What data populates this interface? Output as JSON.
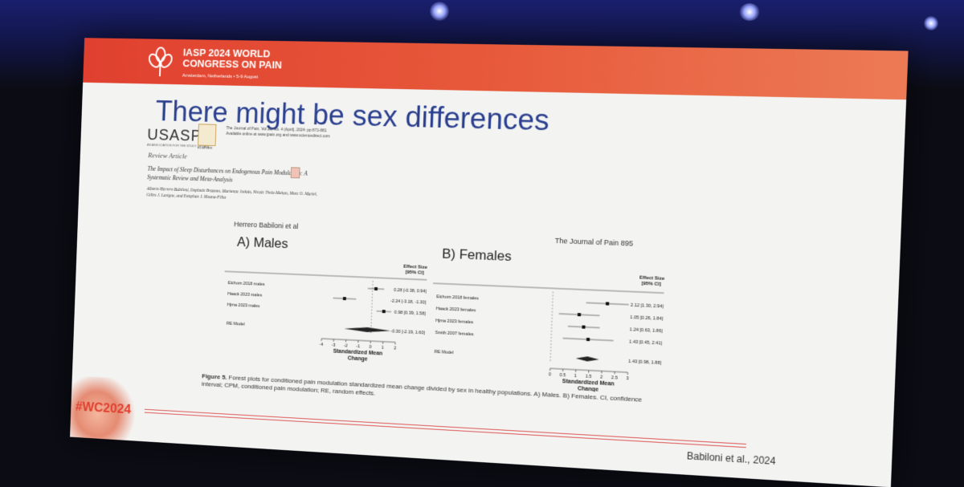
{
  "slide": {
    "congress_title_line1": "IASP 2024 WORLD",
    "congress_title_line2": "CONGRESS ON PAIN",
    "congress_subtitle": "Amsterdam, Netherlands • 5-9 August",
    "title": "There might be sex differences",
    "hashtag": "#WC2024",
    "citation": "Babiloni et al., 2024"
  },
  "paper": {
    "society": "USASP",
    "society_tagline": "AN ASSOCIATION FOR THE STUDY OF PAIN",
    "publisher": "ELSEVIER",
    "header_text": "The Journal of Pain, Vol 25, No. 4 (April), 2024: pp 871-881",
    "header_text2": "Available online at www.jpain.org and www.sciencedirect.com",
    "article_type": "Review Article",
    "title": "The Impact of Sleep Disturbances on Endogenous Pain Modulation: A Systematic Review and Meta-Analysis",
    "authors": "Alberto Herrero Babiloni, Daphnée Brazeau, Marianne Jodoin, Nicole Theis-Mahon, Marc O. Martel, Gilles J. Lavigne, and Estephan J. Moana-Filho"
  },
  "figure": {
    "running_head": "Herrero Babiloni et al",
    "journal_header": "The Journal of Pain   895",
    "panel_a_label": "A)  Males",
    "panel_b_label": "B)  Females",
    "effect_header_1": "Effect Size",
    "effect_header_2": "[95% CI]",
    "axis_label_1": "Standardized Mean",
    "axis_label_2": "Change",
    "caption_bold": "Figure 5.",
    "caption_text": " Forest plots for conditioned pain modulation standardized mean change divided by sex in healthy populations. A) Males. B) Females. CI, confidence interval; CPM, conditioned pain modulation; RE, random effects."
  },
  "chart_data": [
    {
      "type": "forest",
      "title": "A) Males",
      "xlabel": "Standardized Mean Change",
      "xlim": [
        -4,
        2
      ],
      "xticks": [
        "-4",
        "-3",
        "-2",
        "-1",
        "0",
        "1",
        "2"
      ],
      "studies": [
        {
          "label": "Eichorn 2018 males",
          "est": 0.28,
          "lo": -0.38,
          "hi": 0.94,
          "text": "0.28 [-0.38, 0.94]"
        },
        {
          "label": "Haack 2023 males",
          "est": -2.24,
          "lo": -3.18,
          "hi": -1.3,
          "text": "-2.24 [-3.18, -1.30]"
        },
        {
          "label": "Hjrna 2023 males",
          "est": 0.98,
          "lo": 0.39,
          "hi": 1.58,
          "text": "0.98 [0.39, 1.58]"
        }
      ],
      "summary": {
        "label": "RE Model",
        "est": -0.3,
        "lo": -2.19,
        "hi": 1.6,
        "text": "-0.30 [-2.19, 1.60]"
      }
    },
    {
      "type": "forest",
      "title": "B) Females",
      "xlabel": "Standardized Mean Change",
      "xlim": [
        0,
        3
      ],
      "xticks": [
        "0",
        "0.5",
        "1",
        "1.5",
        "2",
        "2.5",
        "3"
      ],
      "studies": [
        {
          "label": "Eichorn 2018 females",
          "est": 2.12,
          "lo": 1.3,
          "hi": 2.94,
          "text": "2.12 [1.30, 2.94]"
        },
        {
          "label": "Haack 2023 females",
          "est": 1.05,
          "lo": 0.26,
          "hi": 1.84,
          "text": "1.05 [0.26, 1.84]"
        },
        {
          "label": "Hjrna 2023 females",
          "est": 1.24,
          "lo": 0.63,
          "hi": 1.86,
          "text": "1.24 [0.63, 1.86]"
        },
        {
          "label": "Smith 2007 females",
          "est": 1.43,
          "lo": 0.45,
          "hi": 2.41,
          "text": "1.43 [0.45, 2.41]"
        }
      ],
      "summary": {
        "label": "RE Model",
        "est": 1.43,
        "lo": 0.98,
        "hi": 1.88,
        "text": "1.43 [0.98, 1.88]"
      }
    }
  ]
}
